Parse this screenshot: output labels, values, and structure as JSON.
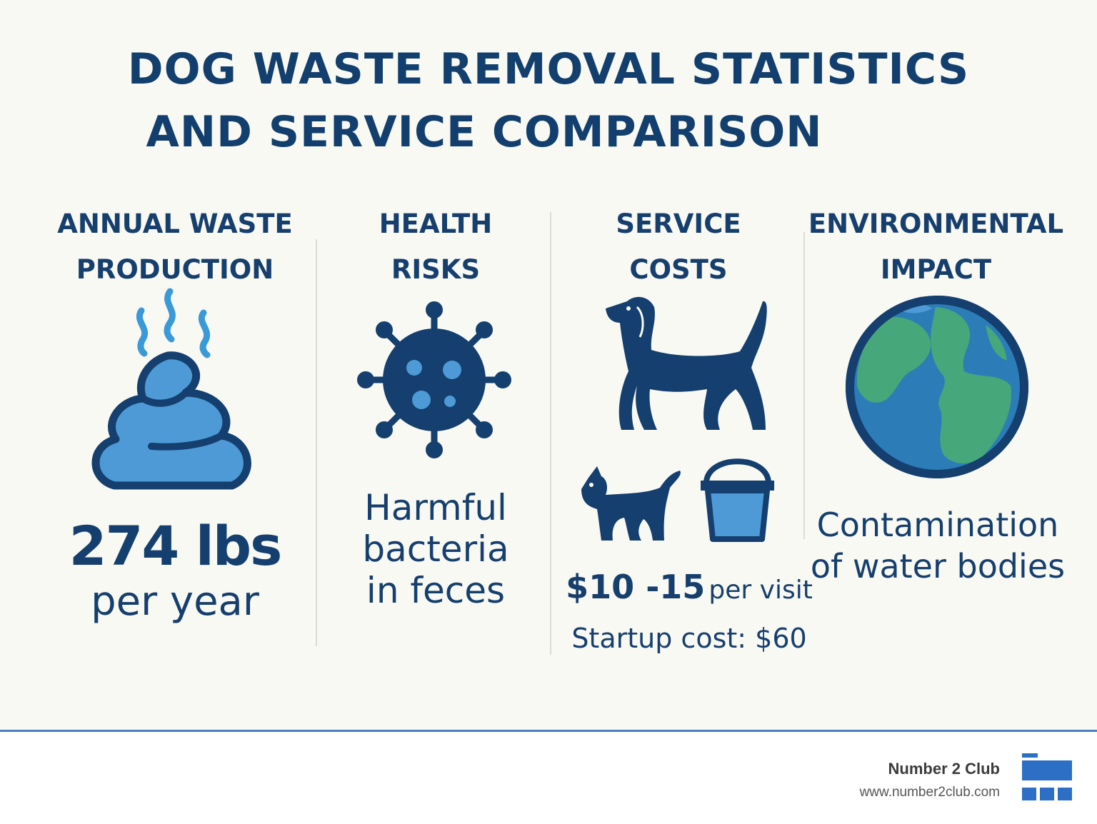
{
  "title": {
    "line1": "DOG WASTE REMOVAL STATISTICS",
    "line2": "AND SERVICE COMPARISON"
  },
  "columns": [
    {
      "heading_line1": "ANNUAL WASTE",
      "heading_line2": "PRODUCTION",
      "icon": "poop-icon",
      "stat": "274 lbs",
      "detail": "per year"
    },
    {
      "heading_line1": "HEALTH",
      "heading_line2": "RISKS",
      "icon": "bacteria-icon",
      "text_line1": "Harmful",
      "text_line2": "bacteria",
      "text_line3": "in feces"
    },
    {
      "heading_line1": "SERVICE",
      "heading_line2": "COSTS",
      "icons": [
        "dog-icon",
        "cat-icon",
        "bucket-icon"
      ],
      "price": "$10 -15",
      "price_suffix": "per visit",
      "startup": "Startup cost: $60"
    },
    {
      "heading_line1": "ENVIRONMENTAL",
      "heading_line2": "IMPACT",
      "icon": "globe-icon",
      "text_line1": "Contamination",
      "text_line2": "of water bodies"
    }
  ],
  "footer": {
    "brand": "Number 2 Club",
    "url": "www.number2club.com",
    "logo_icon": "building-logo-icon"
  },
  "colors": {
    "navy": "#143f6e",
    "light_blue": "#4d9ad6",
    "green": "#46a77a",
    "accent_line": "#4a7fc0"
  }
}
